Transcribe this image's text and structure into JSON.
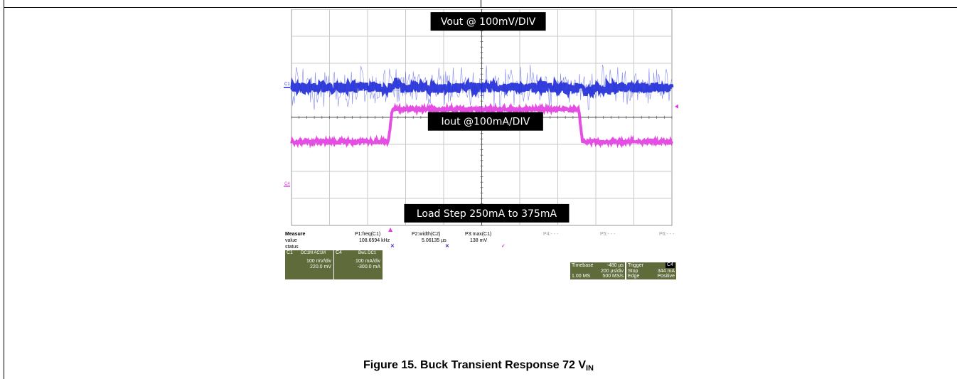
{
  "caption": {
    "text": "Figure 15.  Buck Transient Response 72 V",
    "sub": "IN"
  },
  "chart_data": {
    "type": "line",
    "title": "",
    "annotations": [
      "Vout @ 100mV/DIV",
      "Iout @100mA/DIV",
      "Load Step 250mA to 375mA"
    ],
    "channel_labels": [
      "C1",
      "C4"
    ],
    "grid": true,
    "divisions": {
      "x": 10,
      "y": 8
    },
    "series": [
      {
        "name": "C1",
        "color": "#1f2bd8",
        "x": [
          0,
          2.6,
          2.75,
          2.9,
          7.6,
          7.75,
          7.95,
          10
        ],
        "values": [
          2.9,
          2.9,
          2.7,
          2.92,
          2.9,
          3.15,
          2.92,
          2.9
        ]
      },
      {
        "name": "C4",
        "color": "#e23be0",
        "x": [
          0,
          2.55,
          2.65,
          7.55,
          7.65,
          10
        ],
        "values": [
          4.9,
          4.9,
          3.7,
          3.7,
          4.9,
          4.9
        ]
      }
    ],
    "colors": {
      "c1": "#1f2bd8",
      "c4": "#e23be0",
      "grid": "#9a9a9a"
    }
  },
  "measure": {
    "header": [
      "Measure",
      "P1:freq(C1)",
      "P2:width(C2)",
      "P3:max(C1)",
      "P4:- - -",
      "P5:- - -",
      "P6:- - -"
    ],
    "value": [
      "value",
      "108.6594 kHz",
      "5.06135 µs",
      "138 mV"
    ],
    "status": "status"
  },
  "channels": {
    "c1": {
      "tag": "C1",
      "flags": "DC1M  AC1M",
      "scale": "100 mV/div",
      "offset": "220.0 mV"
    },
    "c4": {
      "tag": "C4",
      "flags": "BwL DC1",
      "scale": "100 mA/div",
      "offset": "-300.0 mA"
    }
  },
  "timebase": {
    "label": "Timebase",
    "delay": "-480 µs",
    "scale": "200 µs/div",
    "samples": "1.00 MS",
    "rate": "500 MS/s"
  },
  "trigger": {
    "label": "Trigger",
    "ch": "C4",
    "mode": "Stop",
    "level": "344 mA",
    "type": "Edge",
    "slope": "Positive"
  }
}
